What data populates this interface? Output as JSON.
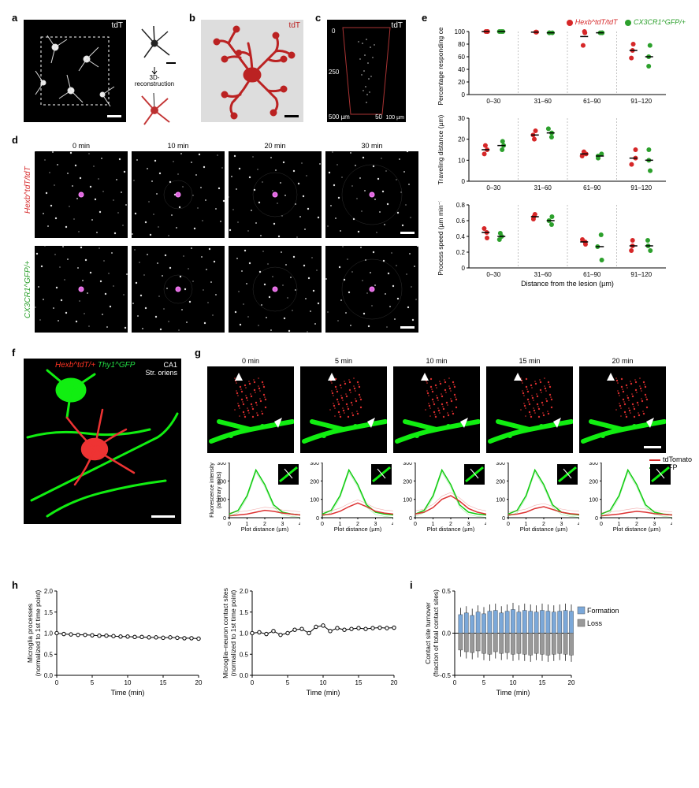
{
  "panel_labels": {
    "a": "a",
    "b": "b",
    "c": "c",
    "d": "d",
    "e": "e",
    "f": "f",
    "g": "g",
    "h": "h",
    "i": "i"
  },
  "a": {
    "label": "tdT",
    "arrow_text": "3D-\nreconstruction"
  },
  "b": {
    "label": "tdT"
  },
  "c": {
    "label": "tdT",
    "depth_top": "0",
    "depth_mid": "250",
    "depth_bot": "500 µm",
    "width_left": "50",
    "width_right": "100 µm"
  },
  "d": {
    "times": [
      "0 min",
      "10 min",
      "20 min",
      "30 min"
    ],
    "row_labels": [
      "Hexb^tdT/tdT",
      "CX3CR1^GFP/+"
    ],
    "row_colors": [
      "#d62728",
      "#2ca02c"
    ]
  },
  "e": {
    "legend": [
      {
        "label": "Hexb^tdT/tdT",
        "color": "#d62728"
      },
      {
        "label": "CX3CR1^GFP/+",
        "color": "#2ca02c"
      }
    ],
    "xcats": [
      "0–30",
      "31–60",
      "61–90",
      "91–120"
    ],
    "xlabel": "Distance from the lesion (µm)",
    "charts": [
      {
        "ylabel": "Percentage responding cells",
        "ylim": [
          0,
          100
        ],
        "yticks": [
          0,
          20,
          40,
          60,
          80,
          100
        ],
        "hexb": [
          100,
          99,
          92,
          70
        ],
        "cx3": [
          100,
          98,
          98,
          60
        ],
        "hexb_pts": [
          [
            100,
            100,
            100
          ],
          [
            99,
            99,
            99
          ],
          [
            78,
            98,
            100
          ],
          [
            58,
            70,
            80
          ]
        ],
        "cx3_pts": [
          [
            100,
            100,
            100
          ],
          [
            98,
            98,
            98
          ],
          [
            98,
            98,
            98
          ],
          [
            45,
            60,
            78
          ]
        ]
      },
      {
        "ylabel": "Traveling distance (µm)",
        "ylim": [
          0,
          30
        ],
        "yticks": [
          0,
          10,
          20,
          30
        ],
        "hexb": [
          15,
          22,
          13,
          11
        ],
        "cx3": [
          17,
          23,
          12,
          10
        ],
        "hexb_pts": [
          [
            13,
            15,
            17
          ],
          [
            20,
            22,
            24
          ],
          [
            12,
            13,
            14
          ],
          [
            8,
            11,
            15
          ]
        ],
        "cx3_pts": [
          [
            15,
            17,
            19
          ],
          [
            21,
            23,
            25
          ],
          [
            11,
            12,
            13
          ],
          [
            5,
            10,
            15
          ]
        ]
      },
      {
        "ylabel": "Process speed (µm min⁻¹)",
        "ylim": [
          0,
          0.8
        ],
        "yticks": [
          0,
          0.2,
          0.4,
          0.6,
          0.8
        ],
        "hexb": [
          0.45,
          0.65,
          0.33,
          0.28
        ],
        "cx3": [
          0.4,
          0.6,
          0.27,
          0.28
        ],
        "hexb_pts": [
          [
            0.38,
            0.45,
            0.5
          ],
          [
            0.62,
            0.65,
            0.68
          ],
          [
            0.3,
            0.33,
            0.36
          ],
          [
            0.22,
            0.28,
            0.35
          ]
        ],
        "cx3_pts": [
          [
            0.36,
            0.4,
            0.44
          ],
          [
            0.55,
            0.6,
            0.65
          ],
          [
            0.1,
            0.27,
            0.42
          ],
          [
            0.22,
            0.28,
            0.35
          ]
        ]
      }
    ]
  },
  "f": {
    "labels": [
      "Hexb^tdT/+",
      "Thy1^GFP"
    ],
    "label_colors": [
      "#ff3322",
      "#22dd44"
    ],
    "region": "CA1\nStr. oriens"
  },
  "g": {
    "times": [
      "0 min",
      "5 min",
      "10 min",
      "15 min",
      "20 min"
    ],
    "legend": [
      {
        "label": "tdTomato",
        "color": "#d62728"
      },
      {
        "label": "GFP",
        "color": "#2ca02c"
      }
    ],
    "intensity": {
      "ylabel": "Fluorescence intensity\n(arbitrary units)",
      "xlabel": "Plot distance (µm)",
      "ylim": [
        0,
        300
      ],
      "yticks": [
        0,
        100,
        200,
        300
      ],
      "xlim": [
        0,
        4
      ],
      "xticks": [
        0,
        1,
        2,
        3,
        4
      ],
      "gfp_x": [
        0,
        0.5,
        1,
        1.5,
        2,
        2.5,
        3,
        3.5,
        4
      ],
      "gfp_y": [
        20,
        40,
        120,
        260,
        180,
        70,
        30,
        20,
        15
      ],
      "tdt_series": [
        [
          10,
          15,
          20,
          30,
          40,
          35,
          25,
          20,
          15
        ],
        [
          15,
          20,
          35,
          60,
          80,
          60,
          35,
          25,
          20
        ],
        [
          20,
          30,
          55,
          100,
          120,
          90,
          50,
          30,
          20
        ],
        [
          15,
          20,
          30,
          50,
          60,
          45,
          30,
          22,
          18
        ],
        [
          10,
          15,
          20,
          28,
          35,
          30,
          22,
          18,
          15
        ]
      ]
    }
  },
  "h": {
    "charts": [
      {
        "ylabel": "Microglia processes\n(normalized to 1st time point)"
      },
      {
        "ylabel": "Microglia–neuron contact sites\n(normalized to 1st time point)"
      }
    ],
    "ylim": [
      0,
      2.0
    ],
    "yticks": [
      0,
      0.5,
      1.0,
      1.5,
      2.0
    ],
    "xlim": [
      0,
      20
    ],
    "xticks": [
      0,
      5,
      10,
      15,
      20
    ],
    "xlabel": "Time (min)",
    "data1_x": [
      0,
      1,
      2,
      3,
      4,
      5,
      6,
      7,
      8,
      9,
      10,
      11,
      12,
      13,
      14,
      15,
      16,
      17,
      18,
      19,
      20
    ],
    "data1_y": [
      1.0,
      0.98,
      0.97,
      0.96,
      0.96,
      0.95,
      0.94,
      0.94,
      0.93,
      0.92,
      0.92,
      0.91,
      0.91,
      0.9,
      0.9,
      0.89,
      0.9,
      0.89,
      0.88,
      0.88,
      0.87
    ],
    "data2_y": [
      1.0,
      1.02,
      0.98,
      1.05,
      0.96,
      1.0,
      1.08,
      1.1,
      1.0,
      1.15,
      1.18,
      1.05,
      1.12,
      1.08,
      1.1,
      1.12,
      1.1,
      1.12,
      1.13,
      1.12,
      1.13
    ],
    "err": 0.05
  },
  "i": {
    "ylabel": "Contact site turnover\n(fraction of total contact sites)",
    "xlabel": "Time (min)",
    "ylim": [
      -0.5,
      0.5
    ],
    "yticks": [
      -0.5,
      0,
      0.5
    ],
    "xlim": [
      0,
      20
    ],
    "xticks": [
      0,
      5,
      10,
      15,
      20
    ],
    "legend": [
      {
        "label": "Formation",
        "color": "#7ba8d9"
      },
      {
        "label": "Loss",
        "color": "#999999"
      }
    ],
    "x": [
      1,
      2,
      3,
      4,
      5,
      6,
      7,
      8,
      9,
      10,
      11,
      12,
      13,
      14,
      15,
      16,
      17,
      18,
      19,
      20
    ],
    "formation": [
      0.22,
      0.24,
      0.21,
      0.25,
      0.23,
      0.26,
      0.27,
      0.24,
      0.26,
      0.28,
      0.25,
      0.27,
      0.26,
      0.25,
      0.27,
      0.26,
      0.25,
      0.26,
      0.27,
      0.26
    ],
    "loss": [
      -0.2,
      -0.22,
      -0.23,
      -0.21,
      -0.24,
      -0.25,
      -0.22,
      -0.24,
      -0.23,
      -0.25,
      -0.24,
      -0.25,
      -0.26,
      -0.24,
      -0.25,
      -0.26,
      -0.25,
      -0.24,
      -0.25,
      -0.26
    ],
    "err": 0.08
  }
}
